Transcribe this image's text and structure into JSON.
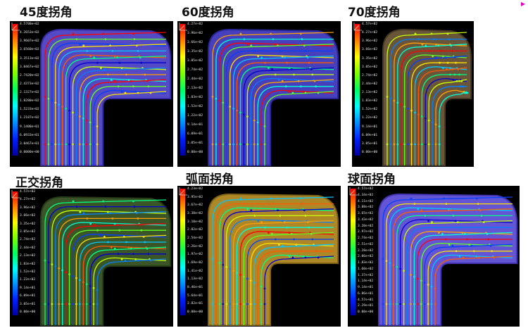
{
  "panels": [
    {
      "title": "45度拐角",
      "ticks": [
        "4.5700e+02",
        "4.2653e+02",
        "3.9607e+02",
        "3.6560e+02",
        "3.3513e+02",
        "3.0467e+02",
        "2.7420e+02",
        "2.4373e+02",
        "2.1327e+02",
        "1.8280e+02",
        "1.5233e+02",
        "1.2187e+02",
        "9.1400e+01",
        "6.0933e+01",
        "3.0467e+01",
        "0.0000e+00"
      ],
      "duct_color": "#5a4fd0",
      "duct_edge": "#3a2fb0"
    },
    {
      "title": "60度拐角",
      "ticks": [
        "4.27e+02",
        "3.96e+02",
        "3.66e+02",
        "3.35e+02",
        "3.05e+02",
        "2.74e+02",
        "2.44e+02",
        "2.13e+02",
        "1.83e+02",
        "1.52e+02",
        "1.22e+02",
        "9.14e+01",
        "6.09e+01",
        "3.05e+01",
        "0.00e+00"
      ],
      "duct_color": "#4a44c8",
      "duct_edge": "#2c2aa0"
    },
    {
      "title": "70度拐角",
      "ticks": [
        "4.57e+02",
        "4.27e+02",
        "3.96e+02",
        "3.66e+02",
        "3.35e+02",
        "3.05e+02",
        "2.74e+02",
        "2.44e+02",
        "2.13e+02",
        "1.83e+02",
        "1.52e+02",
        "1.22e+02",
        "9.14e+01",
        "6.09e+01",
        "3.05e+01",
        "0.00e+00"
      ],
      "duct_color": "#6e5a3e",
      "duct_edge": "#4c3d28"
    },
    {
      "title": "正交拐角",
      "ticks": [
        "4.57e+02",
        "4.27e+02",
        "3.96e+02",
        "3.66e+02",
        "3.35e+02",
        "3.05e+02",
        "2.74e+02",
        "2.44e+02",
        "2.13e+02",
        "1.83e+02",
        "1.52e+02",
        "1.22e+02",
        "9.14e+01",
        "6.09e+01",
        "3.05e+01",
        "0.00e+00"
      ],
      "duct_color": "#3e5a2a",
      "duct_edge": "#2a4018"
    },
    {
      "title": "弧面拐角",
      "ticks": [
        "4.23e+02",
        "3.95e+02",
        "3.67e+02",
        "3.38e+02",
        "3.10e+02",
        "2.82e+02",
        "2.54e+02",
        "2.26e+02",
        "1.97e+02",
        "1.69e+02",
        "1.41e+02",
        "1.13e+02",
        "8.46e+01",
        "5.64e+01",
        "2.82e+01",
        "0.00e+00"
      ],
      "duct_color": "#b8902a",
      "duct_edge": "#8a6a18"
    },
    {
      "title": "球面拐角",
      "ticks": [
        "4.57e+02",
        "4.34e+02",
        "4.11e+02",
        "3.88e+02",
        "3.65e+02",
        "3.43e+02",
        "3.20e+02",
        "2.97e+02",
        "2.74e+02",
        "2.51e+02",
        "2.28e+02",
        "2.06e+02",
        "1.83e+02",
        "1.60e+02",
        "1.37e+02",
        "1.14e+02",
        "9.14e+01",
        "6.86e+01",
        "4.57e+01",
        "2.29e+01",
        "0.00e+00"
      ],
      "duct_color": "#6a5ae0",
      "duct_edge": "#4838c0"
    }
  ]
}
